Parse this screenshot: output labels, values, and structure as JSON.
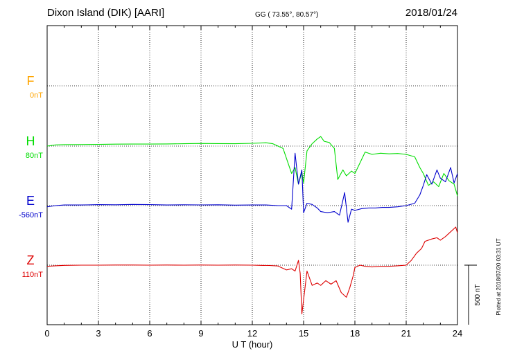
{
  "header": {
    "station": "Dixon Island (DIK)  [AARI]",
    "coords": "GG ( 73.55°,  80.57°)",
    "date": "2018/01/24"
  },
  "side_note": "Plotted at 2018/07/20 03:31  UT",
  "scale_bar_label": "500 nT",
  "components": [
    {
      "letter": "F",
      "base": "0nT",
      "color": "#ffa500"
    },
    {
      "letter": "H",
      "base": "80nT",
      "color": "#00dd00"
    },
    {
      "letter": "E",
      "base": "-560nT",
      "color": "#0000cc"
    },
    {
      "letter": "Z",
      "base": "110nT",
      "color": "#dd0000"
    }
  ],
  "chart_data": {
    "type": "line",
    "xlabel": "U T (hour)",
    "xlim": [
      0,
      24
    ],
    "xticks": [
      "0",
      "3",
      "6",
      "9",
      "12",
      "15",
      "18",
      "21",
      "24"
    ],
    "grid": true,
    "scale_nT": 500,
    "series": [
      {
        "name": "H",
        "color": "#00dd00",
        "baseline": 80,
        "x": [
          0,
          0.5,
          1,
          2,
          3,
          4,
          5,
          6,
          7,
          8,
          9,
          10,
          11,
          12,
          12.8,
          13.2,
          13.8,
          14.3,
          14.5,
          14.7,
          14.9,
          15.0,
          15.2,
          15.5,
          15.8,
          16.0,
          16.2,
          16.5,
          16.8,
          17.0,
          17.3,
          17.5,
          17.8,
          18.0,
          18.3,
          18.6,
          19,
          19.5,
          20,
          20.5,
          21,
          21.5,
          21.8,
          22.0,
          22.3,
          22.6,
          22.9,
          23.2,
          23.5,
          23.8,
          24
        ],
        "y": [
          80,
          90,
          92,
          93,
          94,
          96,
          97,
          97,
          98,
          100,
          102,
          101,
          100,
          103,
          108,
          100,
          60,
          -150,
          -100,
          -240,
          -140,
          -230,
          40,
          100,
          140,
          160,
          120,
          110,
          60,
          -200,
          -120,
          -170,
          -130,
          -150,
          -60,
          30,
          10,
          20,
          15,
          18,
          10,
          -10,
          -100,
          -150,
          -250,
          -220,
          -260,
          -150,
          -210,
          -240,
          -340
        ]
      },
      {
        "name": "E",
        "color": "#0000cc",
        "baseline": -560,
        "x": [
          0,
          0.5,
          1,
          2,
          3,
          4,
          5,
          6,
          7,
          8,
          9,
          10,
          11,
          12,
          12.8,
          13.5,
          14.0,
          14.3,
          14.5,
          14.7,
          14.9,
          15.0,
          15.2,
          15.5,
          15.8,
          16.0,
          16.4,
          16.8,
          17.1,
          17.4,
          17.6,
          17.8,
          18.0,
          18.4,
          18.8,
          19.2,
          19.6,
          20,
          20.5,
          21,
          21.5,
          21.8,
          22.0,
          22.2,
          22.5,
          22.8,
          23.0,
          23.3,
          23.6,
          23.8,
          24
        ],
        "y": [
          -570,
          -560,
          -555,
          -555,
          -552,
          -553,
          -550,
          -552,
          -555,
          -553,
          -554,
          -553,
          -556,
          -555,
          -555,
          -560,
          -560,
          -590,
          -120,
          -380,
          -260,
          -620,
          -540,
          -550,
          -580,
          -610,
          -620,
          -610,
          -640,
          -450,
          -700,
          -590,
          -600,
          -585,
          -580,
          -580,
          -575,
          -575,
          -570,
          -560,
          -540,
          -470,
          -390,
          -300,
          -380,
          -260,
          -330,
          -360,
          -240,
          -370,
          -290
        ]
      },
      {
        "name": "Z",
        "color": "#dd0000",
        "baseline": 110,
        "x": [
          0,
          0.5,
          1,
          2,
          3,
          4,
          5,
          6,
          7,
          8,
          9,
          10,
          11,
          12,
          12.5,
          13.0,
          13.5,
          14.0,
          14.3,
          14.5,
          14.7,
          14.8,
          14.9,
          15.0,
          15.2,
          15.5,
          15.8,
          16.0,
          16.3,
          16.6,
          16.9,
          17.2,
          17.5,
          17.7,
          17.9,
          18.0,
          18.3,
          18.6,
          19,
          19.5,
          20,
          20.5,
          21.0,
          21.3,
          21.6,
          21.9,
          22.1,
          22.5,
          22.8,
          23.0,
          23.3,
          23.6,
          23.9,
          24
        ],
        "y": [
          100,
          105,
          108,
          110,
          110,
          111,
          111,
          110,
          111,
          110,
          111,
          110,
          111,
          110,
          108,
          107,
          103,
          70,
          80,
          60,
          150,
          40,
          -300,
          -180,
          60,
          -60,
          -40,
          -60,
          -20,
          -50,
          -20,
          -120,
          -160,
          -80,
          20,
          90,
          110,
          100,
          95,
          100,
          100,
          105,
          110,
          150,
          210,
          250,
          310,
          330,
          340,
          320,
          350,
          390,
          430,
          380
        ]
      }
    ]
  }
}
